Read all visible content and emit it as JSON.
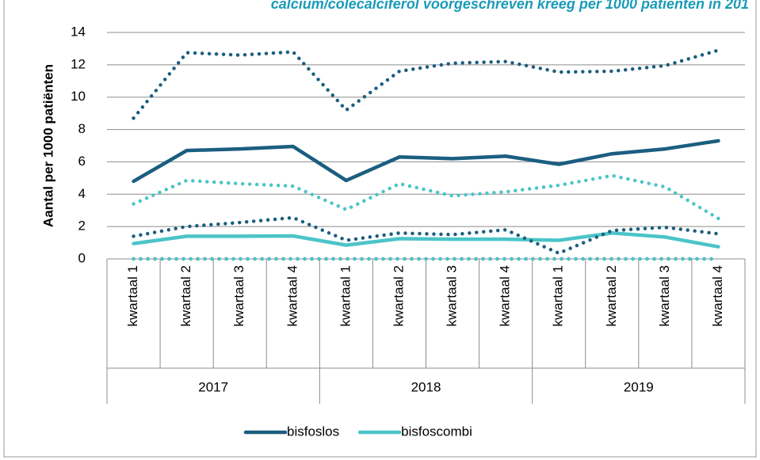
{
  "chart_data": {
    "type": "line",
    "title": "calcium/colecalciferol voorgeschreven kreeg per 1000 patiënten in 201",
    "y_label": "Aantal per 1000 patiënten",
    "categories": [
      "kwartaal 1",
      "kwartaal 2",
      "kwartaal 3",
      "kwartaal 4",
      "kwartaal 1",
      "kwartaal 2",
      "kwartaal 3",
      "kwartaal 4",
      "kwartaal 1",
      "kwartaal 2",
      "kwartaal 3",
      "kwartaal 4"
    ],
    "years": [
      "2017",
      "2018",
      "2019"
    ],
    "series": [
      {
        "name": "bisfoslos",
        "color": "#1b5e80",
        "style": "solid",
        "values": [
          4.8,
          6.7,
          6.8,
          6.95,
          4.85,
          6.3,
          6.2,
          6.35,
          5.85,
          6.5,
          6.8,
          7.3
        ]
      },
      {
        "name": "bisfoscombi",
        "color": "#4bc4c8",
        "style": "solid",
        "values": [
          0.95,
          1.4,
          1.4,
          1.42,
          0.85,
          1.25,
          1.22,
          1.22,
          1.15,
          1.6,
          1.35,
          0.75
        ]
      },
      {
        "color": "#1b5e80",
        "style": "dotted",
        "values": [
          8.7,
          12.75,
          12.6,
          12.8,
          9.2,
          11.6,
          12.1,
          12.2,
          11.55,
          11.6,
          11.95,
          12.9
        ]
      },
      {
        "color": "#4bc4c8",
        "style": "dotted",
        "values": [
          3.4,
          4.85,
          4.65,
          4.5,
          3.05,
          4.65,
          3.9,
          4.15,
          4.55,
          5.15,
          4.45,
          2.5
        ]
      },
      {
        "color": "#1b5e80",
        "style": "dotted",
        "values": [
          1.4,
          2.0,
          2.25,
          2.55,
          1.15,
          1.6,
          1.5,
          1.8,
          0.35,
          1.75,
          1.95,
          1.55
        ]
      },
      {
        "color": "#1b5e80",
        "style": "dotted",
        "values": [
          0,
          0,
          0,
          0,
          0,
          0,
          0,
          0,
          0,
          0,
          0,
          0
        ]
      },
      {
        "color": "#4bc4c8",
        "style": "dotted",
        "values": [
          0,
          0,
          0,
          0,
          0,
          0,
          0,
          0,
          0,
          0,
          0,
          0
        ]
      }
    ],
    "ylim": [
      0,
      14
    ],
    "yticks": [
      0,
      2,
      4,
      6,
      8,
      10,
      12,
      14
    ],
    "grid": true,
    "legend": "bottom"
  }
}
